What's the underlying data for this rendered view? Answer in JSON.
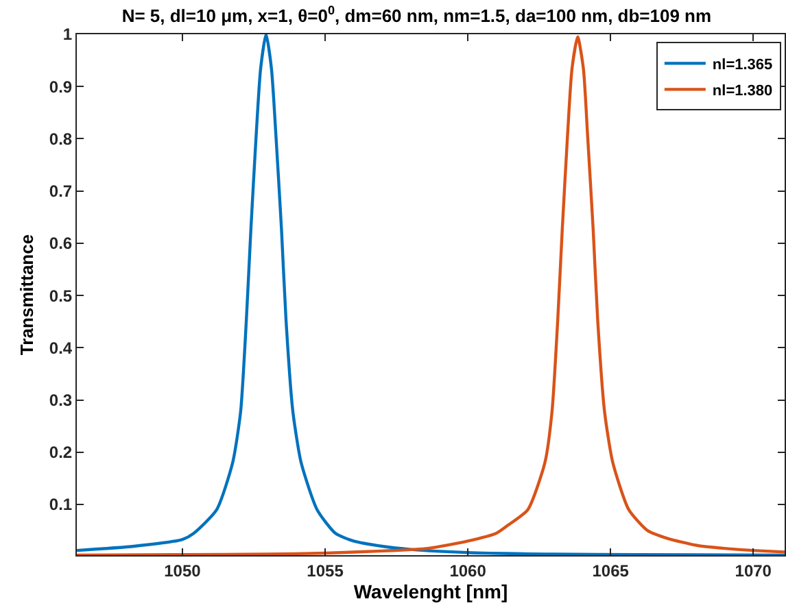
{
  "chart_data": {
    "type": "line",
    "title": "N= 5, dl=10 μm, x=1, θ=0$^{0}$, dm=60 nm, nm=1.5, da=100 nm, db=109 nm",
    "xlabel": "Wavelenght [nm]",
    "ylabel": "Transmittance",
    "xlim": [
      1046.3,
      1071.1
    ],
    "xticks": [
      1050,
      1055,
      1060,
      1065,
      1070
    ],
    "ylim": [
      0.003,
      1
    ],
    "yticks": [
      0.1,
      0.2,
      0.3,
      0.4,
      0.5,
      0.6,
      0.7,
      0.8,
      0.9,
      1
    ],
    "legend": "top right",
    "marker": "none",
    "line_style": "solid",
    "series": [
      {
        "name": "nl=1.365",
        "color": "#0072bd",
        "x": [
          1046.3,
          1048.3,
          1050,
          1050.4,
          1051.2,
          1051.76,
          1052.04,
          1052.24,
          1052.4,
          1052.58,
          1052.74,
          1052.93,
          1053.12,
          1053.28,
          1053.47,
          1053.63,
          1053.87,
          1054.16,
          1054.72,
          1055.36,
          1056,
          1057,
          1058,
          1060,
          1063,
          1066,
          1071.1
        ],
        "values": [
          0.012,
          0.02,
          0.033,
          0.045,
          0.09,
          0.18,
          0.278,
          0.453,
          0.628,
          0.803,
          0.934,
          1.0,
          0.934,
          0.803,
          0.628,
          0.453,
          0.278,
          0.18,
          0.09,
          0.045,
          0.03,
          0.02,
          0.014,
          0.008,
          0.005,
          0.004,
          0.003
        ]
      },
      {
        "name": "nl=1.380",
        "color": "#d95319",
        "x": [
          1046.3,
          1050,
          1053,
          1055,
          1057,
          1058.6,
          1060,
          1061,
          1061.4,
          1062.1,
          1062.7,
          1062.95,
          1063.15,
          1063.31,
          1063.49,
          1063.65,
          1063.85,
          1064.05,
          1064.2,
          1064.39,
          1064.55,
          1064.79,
          1065.08,
          1065.64,
          1066.3,
          1067,
          1068,
          1069,
          1070,
          1071.1
        ],
        "values": [
          0.003,
          0.004,
          0.005,
          0.007,
          0.011,
          0.016,
          0.03,
          0.045,
          0.06,
          0.09,
          0.18,
          0.278,
          0.453,
          0.628,
          0.803,
          0.934,
          0.995,
          0.934,
          0.803,
          0.628,
          0.453,
          0.278,
          0.18,
          0.09,
          0.05,
          0.035,
          0.022,
          0.016,
          0.012,
          0.009
        ]
      }
    ]
  }
}
